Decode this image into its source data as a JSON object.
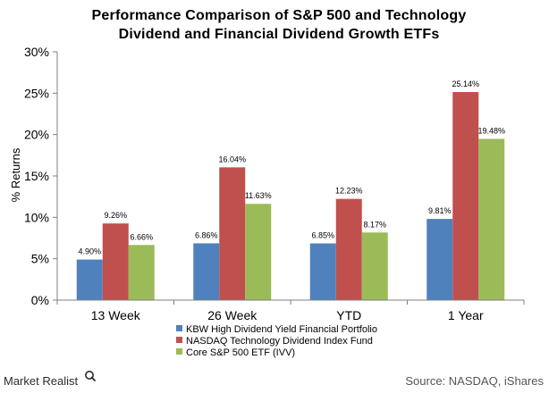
{
  "chart_data": {
    "type": "bar",
    "title_lines": [
      "Performance Comparison of S&P 500 and Technology",
      "Dividend and Financial Dividend Growth ETFs"
    ],
    "xlabel": "",
    "ylabel": "% Returns",
    "categories": [
      "13 Week",
      "26 Week",
      "YTD",
      "1 Year"
    ],
    "ylim": [
      0,
      30
    ],
    "y_ticks": [
      0,
      5,
      10,
      15,
      20,
      25,
      30
    ],
    "y_tick_labels": [
      "0%",
      "5%",
      "10%",
      "15%",
      "20%",
      "25%",
      "30%"
    ],
    "grid": false,
    "legend_position": "bottom-center",
    "series": [
      {
        "name": "KBW High Dividend Yield Financial Portfolio",
        "color": "#4f81bd",
        "values": [
          4.9,
          6.86,
          6.85,
          9.81
        ],
        "labels": [
          "4.90%",
          "6.86%",
          "6.85%",
          "9.81%"
        ]
      },
      {
        "name": "NASDAQ Technology Dividend Index Fund",
        "color": "#c0504d",
        "values": [
          9.26,
          16.04,
          12.23,
          25.14
        ],
        "labels": [
          "9.26%",
          "16.04%",
          "12.23%",
          "25.14%"
        ]
      },
      {
        "name": "Core S&P 500 ETF (IVV)",
        "color": "#9bbb59",
        "values": [
          6.66,
          11.63,
          8.17,
          19.48
        ],
        "labels": [
          "6.66%",
          "11.63%",
          "8.17%",
          "19.48%"
        ]
      }
    ]
  },
  "footer": {
    "brand": "Market Realist",
    "brand_icon": "magnifier-q-icon",
    "source": "Source: NASDAQ, iShares"
  }
}
